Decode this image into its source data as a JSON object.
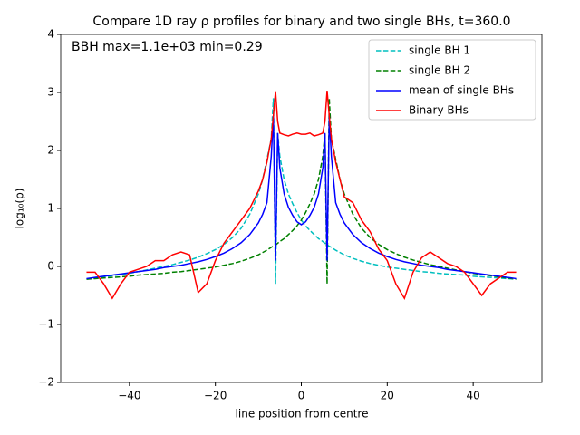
{
  "chart_data": {
    "type": "line",
    "title": "Compare 1D ray ρ profiles for binary and two single BHs, t=360.0",
    "annotation": "BBH max=1.1e+03 min=0.29",
    "xlabel": "line position from centre",
    "ylabel": "log₁₀(ρ)",
    "x": [
      -50,
      -48,
      -46,
      -44,
      -42,
      -40,
      -38,
      -36,
      -34,
      -32,
      -30,
      -28,
      -26,
      -24,
      -22,
      -20,
      -18,
      -16,
      -14,
      -12,
      -10,
      -9,
      -8,
      -7,
      -6.5,
      -6,
      -5.5,
      -5,
      -4,
      -3,
      -2,
      -1,
      0,
      1,
      2,
      3,
      4,
      5,
      5.5,
      6,
      6.5,
      7,
      8,
      9,
      10,
      12,
      14,
      16,
      18,
      20,
      22,
      24,
      26,
      28,
      30,
      32,
      34,
      36,
      38,
      40,
      42,
      44,
      46,
      48,
      50
    ],
    "series": [
      {
        "name": "single BH 1",
        "color": "#00bfbf",
        "linestyle": "dashed",
        "values": [
          -0.22,
          -0.2,
          -0.18,
          -0.16,
          -0.14,
          -0.12,
          -0.09,
          -0.06,
          -0.03,
          0.0,
          0.03,
          0.07,
          0.11,
          0.16,
          0.22,
          0.29,
          0.38,
          0.5,
          0.66,
          0.9,
          1.25,
          1.5,
          1.85,
          2.2,
          2.9,
          -0.3,
          2.3,
          1.9,
          1.5,
          1.25,
          1.08,
          0.93,
          0.8,
          0.7,
          0.62,
          0.55,
          0.48,
          0.43,
          0.4,
          0.37,
          0.35,
          0.33,
          0.28,
          0.24,
          0.2,
          0.14,
          0.09,
          0.05,
          0.02,
          -0.01,
          -0.03,
          -0.05,
          -0.07,
          -0.09,
          -0.1,
          -0.12,
          -0.13,
          -0.14,
          -0.15,
          -0.17,
          -0.18,
          -0.19,
          -0.2,
          -0.21,
          -0.22
        ]
      },
      {
        "name": "single BH 2",
        "color": "#008000",
        "linestyle": "dashed",
        "values": [
          -0.22,
          -0.21,
          -0.2,
          -0.19,
          -0.18,
          -0.17,
          -0.15,
          -0.14,
          -0.13,
          -0.12,
          -0.1,
          -0.09,
          -0.07,
          -0.05,
          -0.03,
          -0.01,
          0.02,
          0.05,
          0.09,
          0.14,
          0.2,
          0.24,
          0.28,
          0.33,
          0.35,
          0.37,
          0.4,
          0.43,
          0.48,
          0.55,
          0.62,
          0.7,
          0.8,
          0.93,
          1.08,
          1.25,
          1.5,
          1.9,
          2.3,
          -0.3,
          2.9,
          2.2,
          1.85,
          1.5,
          1.25,
          0.9,
          0.66,
          0.5,
          0.38,
          0.29,
          0.22,
          0.16,
          0.11,
          0.07,
          0.03,
          0.0,
          -0.03,
          -0.06,
          -0.09,
          -0.12,
          -0.14,
          -0.16,
          -0.18,
          -0.2,
          -0.22
        ]
      },
      {
        "name": "mean of single BHs",
        "color": "#0000ff",
        "linestyle": "solid",
        "values": [
          -0.21,
          -0.19,
          -0.17,
          -0.15,
          -0.13,
          -0.11,
          -0.09,
          -0.07,
          -0.05,
          -0.02,
          0.0,
          0.02,
          0.05,
          0.08,
          0.12,
          0.17,
          0.23,
          0.31,
          0.41,
          0.55,
          0.75,
          0.9,
          1.1,
          1.9,
          2.6,
          0.1,
          2.3,
          1.7,
          1.25,
          1.02,
          0.88,
          0.77,
          0.72,
          0.77,
          0.88,
          1.02,
          1.25,
          1.7,
          2.3,
          0.1,
          2.6,
          1.9,
          1.1,
          0.9,
          0.75,
          0.55,
          0.41,
          0.31,
          0.23,
          0.17,
          0.12,
          0.08,
          0.05,
          0.02,
          0.0,
          -0.02,
          -0.05,
          -0.07,
          -0.09,
          -0.11,
          -0.13,
          -0.15,
          -0.17,
          -0.19,
          -0.21
        ]
      },
      {
        "name": "Binary BHs",
        "color": "#ff0000",
        "linestyle": "solid",
        "values": [
          -0.1,
          -0.1,
          -0.3,
          -0.55,
          -0.3,
          -0.1,
          -0.05,
          0.0,
          0.1,
          0.1,
          0.2,
          0.25,
          0.2,
          -0.45,
          -0.3,
          0.1,
          0.4,
          0.6,
          0.8,
          1.0,
          1.3,
          1.5,
          1.8,
          2.2,
          2.6,
          3.02,
          2.5,
          2.3,
          2.27,
          2.25,
          2.28,
          2.3,
          2.28,
          2.28,
          2.3,
          2.25,
          2.27,
          2.3,
          2.5,
          3.03,
          2.6,
          2.2,
          1.8,
          1.5,
          1.2,
          1.1,
          0.8,
          0.6,
          0.3,
          0.1,
          -0.3,
          -0.55,
          -0.1,
          0.15,
          0.25,
          0.15,
          0.05,
          0.0,
          -0.1,
          -0.3,
          -0.5,
          -0.3,
          -0.2,
          -0.1,
          -0.1
        ]
      }
    ],
    "xlim": [
      -56,
      56
    ],
    "ylim": [
      -2,
      4
    ],
    "xticks": [
      {
        "value": -40,
        "label": "−40"
      },
      {
        "value": -20,
        "label": "−20"
      },
      0,
      20,
      40
    ],
    "yticks": [
      {
        "value": -2,
        "label": "−2"
      },
      {
        "value": -1,
        "label": "−1"
      },
      0,
      1,
      2,
      3,
      4
    ],
    "legend": "upper right",
    "grid": false
  }
}
